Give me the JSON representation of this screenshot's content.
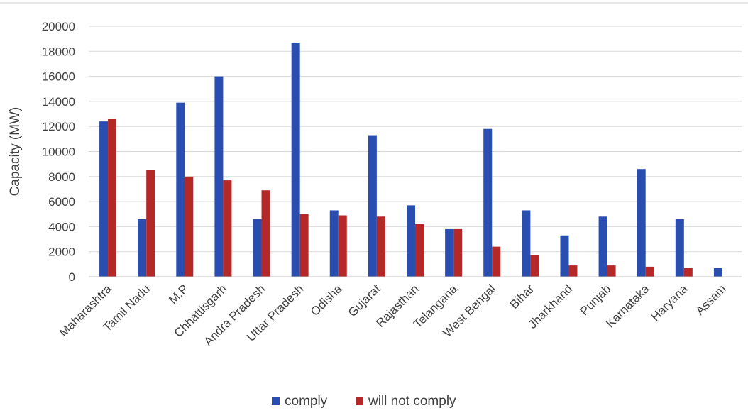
{
  "chart_data": {
    "type": "bar",
    "title": "",
    "xlabel": "",
    "ylabel": "Capacity (MW)",
    "ylim": [
      0,
      20000
    ],
    "yticks": [
      0,
      2000,
      4000,
      6000,
      8000,
      10000,
      12000,
      14000,
      16000,
      18000,
      20000
    ],
    "grid": true,
    "legend_position": "bottom",
    "categories": [
      "Maharashtra",
      "Tamil Nadu",
      "M.P",
      "Chhattisgarh",
      "Andra Pradesh",
      "Uttar Pradesh",
      "Odisha",
      "Gujarat",
      "Rajasthan",
      "Telangana",
      "West Bengal",
      "Bihar",
      "Jharkhand",
      "Punjab",
      "Karnataka",
      "Haryana",
      "Assam"
    ],
    "series": [
      {
        "name": "comply",
        "color": "#2a4db0",
        "values": [
          12400,
          4600,
          13900,
          16000,
          4600,
          18700,
          5300,
          11300,
          5700,
          3800,
          11800,
          5300,
          3300,
          4800,
          8600,
          4600,
          700
        ]
      },
      {
        "name": "will not comply",
        "color": "#b42828",
        "values": [
          12600,
          8500,
          8000,
          7700,
          6900,
          5000,
          4900,
          4800,
          4200,
          3800,
          2400,
          1700,
          900,
          900,
          800,
          700,
          0
        ]
      }
    ]
  }
}
